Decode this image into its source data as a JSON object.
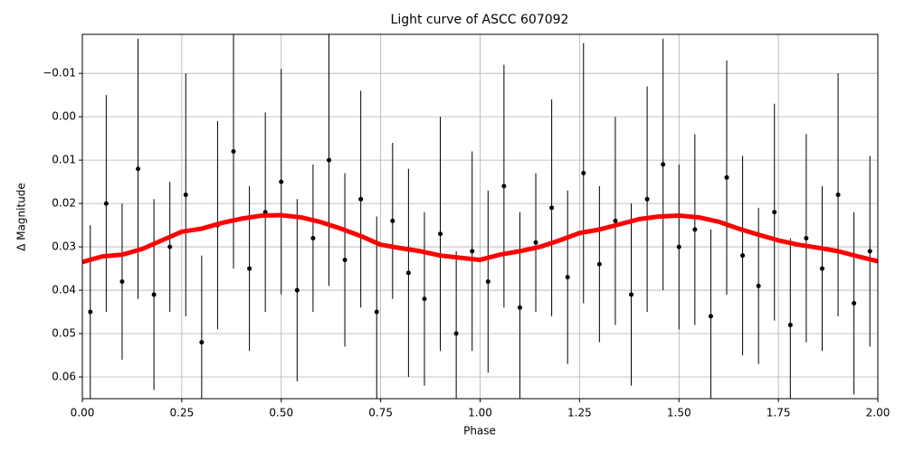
{
  "chart_data": {
    "type": "scatter_errorbar_line",
    "title": "Light curve of ASCC 607092",
    "x_label": "Phase",
    "y_label": "Δ Magnitude",
    "xlim": [
      0,
      2
    ],
    "ylim": [
      -0.019,
      0.065
    ],
    "y_inverted": true,
    "grid": true,
    "xticks": [
      {
        "value": 0,
        "label": "0.00"
      },
      {
        "value": 0.25,
        "label": "0.25"
      },
      {
        "value": 0.5,
        "label": "0.50"
      },
      {
        "value": 0.75,
        "label": "0.75"
      },
      {
        "value": 1,
        "label": "1.00"
      },
      {
        "value": 1.25,
        "label": "1.25"
      },
      {
        "value": 1.5,
        "label": "1.50"
      },
      {
        "value": 1.75,
        "label": "1.75"
      },
      {
        "value": 2,
        "label": "2.00"
      }
    ],
    "yticks": [
      {
        "value": -0.01,
        "label": "−0.01"
      },
      {
        "value": 0,
        "label": "0.00"
      },
      {
        "value": 0.01,
        "label": "0.01"
      },
      {
        "value": 0.02,
        "label": "0.02"
      },
      {
        "value": 0.03,
        "label": "0.03"
      },
      {
        "value": 0.04,
        "label": "0.04"
      },
      {
        "value": 0.05,
        "label": "0.05"
      },
      {
        "value": 0.06,
        "label": "0.06"
      }
    ],
    "points": {
      "color": "#000000",
      "x": [
        0.02,
        0.06,
        0.1,
        0.14,
        0.18,
        0.22,
        0.26,
        0.3,
        0.34,
        0.38,
        0.42,
        0.46,
        0.5,
        0.54,
        0.58,
        0.62,
        0.66,
        0.7,
        0.74,
        0.78,
        0.82,
        0.86,
        0.9,
        0.94,
        0.98,
        1.02,
        1.06,
        1.1,
        1.14,
        1.18,
        1.22,
        1.26,
        1.3,
        1.34,
        1.38,
        1.42,
        1.46,
        1.5,
        1.54,
        1.58,
        1.62,
        1.66,
        1.7,
        1.74,
        1.78,
        1.82,
        1.86,
        1.9,
        1.94,
        1.98
      ],
      "values": [
        0.045,
        0.02,
        0.038,
        0.012,
        0.041,
        0.03,
        0.018,
        0.052,
        0.025,
        0.008,
        0.035,
        0.022,
        0.015,
        0.04,
        0.028,
        0.01,
        0.033,
        0.019,
        0.045,
        0.024,
        0.036,
        0.042,
        0.027,
        0.05,
        0.031,
        0.038,
        0.016,
        0.044,
        0.029,
        0.021,
        0.037,
        0.013,
        0.034,
        0.024,
        0.041,
        0.019,
        0.011,
        0.03,
        0.026,
        0.046,
        0.014,
        0.032,
        0.039,
        0.022,
        0.048,
        0.028,
        0.035,
        0.018,
        0.043,
        0.031
      ],
      "errors": [
        0.02,
        0.025,
        0.018,
        0.03,
        0.022,
        0.015,
        0.028,
        0.02,
        0.024,
        0.027,
        0.019,
        0.023,
        0.026,
        0.021,
        0.017,
        0.029,
        0.02,
        0.025,
        0.022,
        0.018,
        0.024,
        0.02,
        0.027,
        0.019,
        0.023,
        0.021,
        0.028,
        0.022,
        0.016,
        0.025,
        0.02,
        0.03,
        0.018,
        0.024,
        0.021,
        0.026,
        0.029,
        0.019,
        0.022,
        0.02,
        0.027,
        0.023,
        0.018,
        0.025,
        0.02,
        0.024,
        0.019,
        0.028,
        0.021,
        0.022
      ]
    },
    "binned": {
      "color": "#ff0000",
      "x": [
        0,
        0.05,
        0.1,
        0.15,
        0.2,
        0.25,
        0.3,
        0.35,
        0.4,
        0.45,
        0.5,
        0.55,
        0.6,
        0.65,
        0.7,
        0.75,
        0.8,
        0.85,
        0.9,
        0.95,
        1.0,
        1.05,
        1.1,
        1.15,
        1.2,
        1.25,
        1.3,
        1.35,
        1.4,
        1.45,
        1.5,
        1.55,
        1.6,
        1.65,
        1.7,
        1.75,
        1.8,
        1.85,
        1.9,
        1.95,
        2.0
      ],
      "values": [
        0.0335,
        0.0322,
        0.0318,
        0.0305,
        0.0285,
        0.0265,
        0.0258,
        0.0245,
        0.0235,
        0.0228,
        0.0227,
        0.0232,
        0.0243,
        0.0258,
        0.0275,
        0.0295,
        0.0303,
        0.031,
        0.032,
        0.0325,
        0.033,
        0.0318,
        0.031,
        0.03,
        0.0285,
        0.0268,
        0.026,
        0.0248,
        0.0236,
        0.023,
        0.0228,
        0.0232,
        0.0242,
        0.0258,
        0.0272,
        0.0285,
        0.0295,
        0.0302,
        0.031,
        0.0322,
        0.0333
      ]
    }
  }
}
